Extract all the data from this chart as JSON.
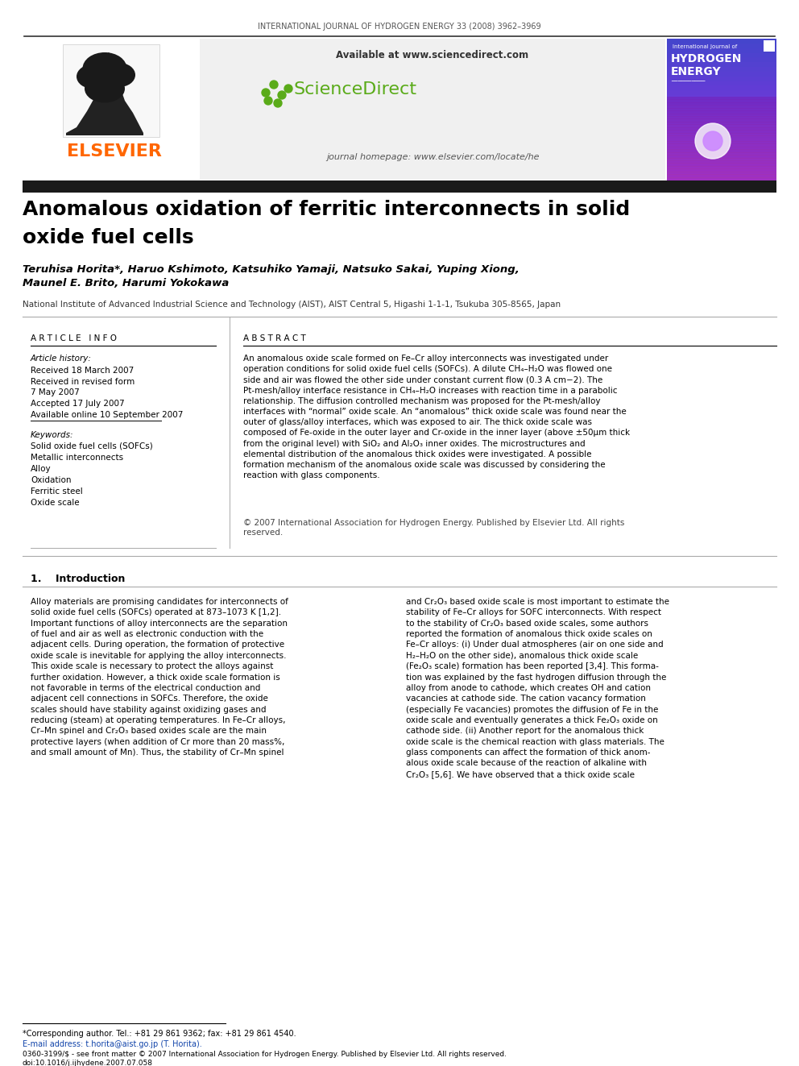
{
  "journal_header": "INTERNATIONAL JOURNAL OF HYDROGEN ENERGY 33 (2008) 3962–3969",
  "available_text": "Available at www.sciencedirect.com",
  "journal_homepage": "journal homepage: www.elsevier.com/locate/he",
  "title_line1": "Anomalous oxidation of ferritic interconnects in solid",
  "title_line2": "oxide fuel cells",
  "authors": "Teruhisa Horita*, Haruo Kshimoto, Katsuhiko Yamaji, Natsuko Sakai, Yuping Xiong,\nMaunel E. Brito, Harumi Yokokawa",
  "affiliation": "National Institute of Advanced Industrial Science and Technology (AIST), AIST Central 5, Higashi 1-1-1, Tsukuba 305-8565, Japan",
  "article_info_title": "A R T I C L E   I N F O",
  "abstract_title": "A B S T R A C T",
  "article_history_label": "Article history:",
  "received1": "Received 18 March 2007",
  "received2": "Received in revised form",
  "received2b": "7 May 2007",
  "accepted": "Accepted 17 July 2007",
  "available_online": "Available online 10 September 2007",
  "keywords_label": "Keywords:",
  "keyword1": "Solid oxide fuel cells (SOFCs)",
  "keyword2": "Metallic interconnects",
  "keyword3": "Alloy",
  "keyword4": "Oxidation",
  "keyword5": "Ferritic steel",
  "keyword6": "Oxide scale",
  "abstract_text": "An anomalous oxide scale formed on Fe–Cr alloy interconnects was investigated under\noperation conditions for solid oxide fuel cells (SOFCs). A dilute CH₄–H₂O was flowed one\nside and air was flowed the other side under constant current flow (0.3 A cm−2). The\nPt-mesh/alloy interface resistance in CH₄–H₂O increases with reaction time in a parabolic\nrelationship. The diffusion controlled mechanism was proposed for the Pt-mesh/alloy\ninterfaces with “normal” oxide scale. An “anomalous” thick oxide scale was found near the\nouter of glass/alloy interfaces, which was exposed to air. The thick oxide scale was\ncomposed of Fe-oxide in the outer layer and Cr-oxide in the inner layer (above ±50μm thick\nfrom the original level) with SiO₂ and Al₂O₃ inner oxides. The microstructures and\nelemental distribution of the anomalous thick oxides were investigated. A possible\nformation mechanism of the anomalous oxide scale was discussed by considering the\nreaction with glass components.",
  "copyright_text": "© 2007 International Association for Hydrogen Energy. Published by Elsevier Ltd. All rights\nreserved.",
  "section1_title": "1.    Introduction",
  "intro_text1": "Alloy materials are promising candidates for interconnects of\nsolid oxide fuel cells (SOFCs) operated at 873–1073 K [1,2].\nImportant functions of alloy interconnects are the separation\nof fuel and air as well as electronic conduction with the\nadjacent cells. During operation, the formation of protective\noxide scale is inevitable for applying the alloy interconnects.\nThis oxide scale is necessary to protect the alloys against\nfurther oxidation. However, a thick oxide scale formation is\nnot favorable in terms of the electrical conduction and\nadjacent cell connections in SOFCs. Therefore, the oxide\nscales should have stability against oxidizing gases and\nreducing (steam) at operating temperatures. In Fe–Cr alloys,\nCr–Mn spinel and Cr₂O₃ based oxides scale are the main\nprotective layers (when addition of Cr more than 20 mass%,\nand small amount of Mn). Thus, the stability of Cr–Mn spinel",
  "intro_text2": "and Cr₂O₃ based oxide scale is most important to estimate the\nstability of Fe–Cr alloys for SOFC interconnects. With respect\nto the stability of Cr₂O₃ based oxide scales, some authors\nreported the formation of anomalous thick oxide scales on\nFe–Cr alloys: (i) Under dual atmospheres (air on one side and\nH₂–H₂O on the other side), anomalous thick oxide scale\n(Fe₂O₃ scale) formation has been reported [3,4]. This forma-\ntion was explained by the fast hydrogen diffusion through the\nalloy from anode to cathode, which creates OH and cation\nvacancies at cathode side. The cation vacancy formation\n(especially Fe vacancies) promotes the diffusion of Fe in the\noxide scale and eventually generates a thick Fe₂O₃ oxide on\ncathode side. (ii) Another report for the anomalous thick\noxide scale is the chemical reaction with glass materials. The\nglass components can affect the formation of thick anom-\nalous oxide scale because of the reaction of alkaline with\nCr₂O₃ [5,6]. We have observed that a thick oxide scale",
  "footnote_corresponding": "*Corresponding author. Tel.: +81 29 861 9362; fax: +81 29 861 4540.",
  "footnote_email": "E-mail address: t.horita@aist.go.jp (T. Horita).",
  "footnote_issn": "0360-3199/$ - see front matter © 2007 International Association for Hydrogen Energy. Published by Elsevier Ltd. All rights reserved.",
  "footnote_doi": "doi:10.1016/j.ijhydene.2007.07.058",
  "bg_color": "#ffffff",
  "elsevier_orange": "#FF6600",
  "sciencedirect_green": "#5aab19",
  "dark_bar_color": "#1a1a1a",
  "cover_gradient_top": "#4455cc",
  "cover_gradient_bottom": "#cc44cc"
}
